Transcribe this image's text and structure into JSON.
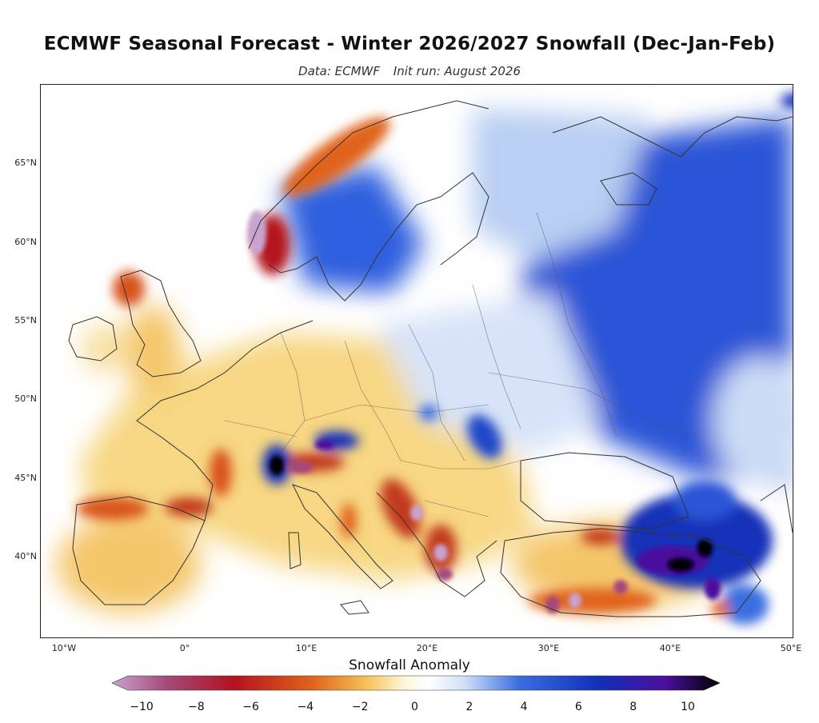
{
  "header": {
    "title": "ECMWF Seasonal Forecast - Winter 2026/2027 Snowfall (Dec-Jan-Feb)",
    "data_source": "Data: ECMWF",
    "init_run": "Init run: August 2026"
  },
  "map": {
    "region": "Europe",
    "lat_labels": [
      "65°N",
      "60°N",
      "55°N",
      "50°N",
      "45°N",
      "40°N"
    ],
    "lon_labels": [
      "10°W",
      "0°",
      "10°E",
      "20°E",
      "30°E",
      "40°E",
      "50°E"
    ]
  },
  "colorbar": {
    "title": "Snowfall Anomaly",
    "ticks": [
      "−10",
      "−8",
      "−6",
      "−4",
      "−2",
      "0",
      "2",
      "4",
      "6",
      "8",
      "10"
    ],
    "colors": [
      "#c9a3cf",
      "#a44a7b",
      "#b3121f",
      "#e0641a",
      "#f6c35a",
      "#fdf6d8",
      "#ffffff",
      "#cfe0f7",
      "#3a6ee0",
      "#1230b8",
      "#4b0f9e",
      "#000000"
    ]
  }
}
